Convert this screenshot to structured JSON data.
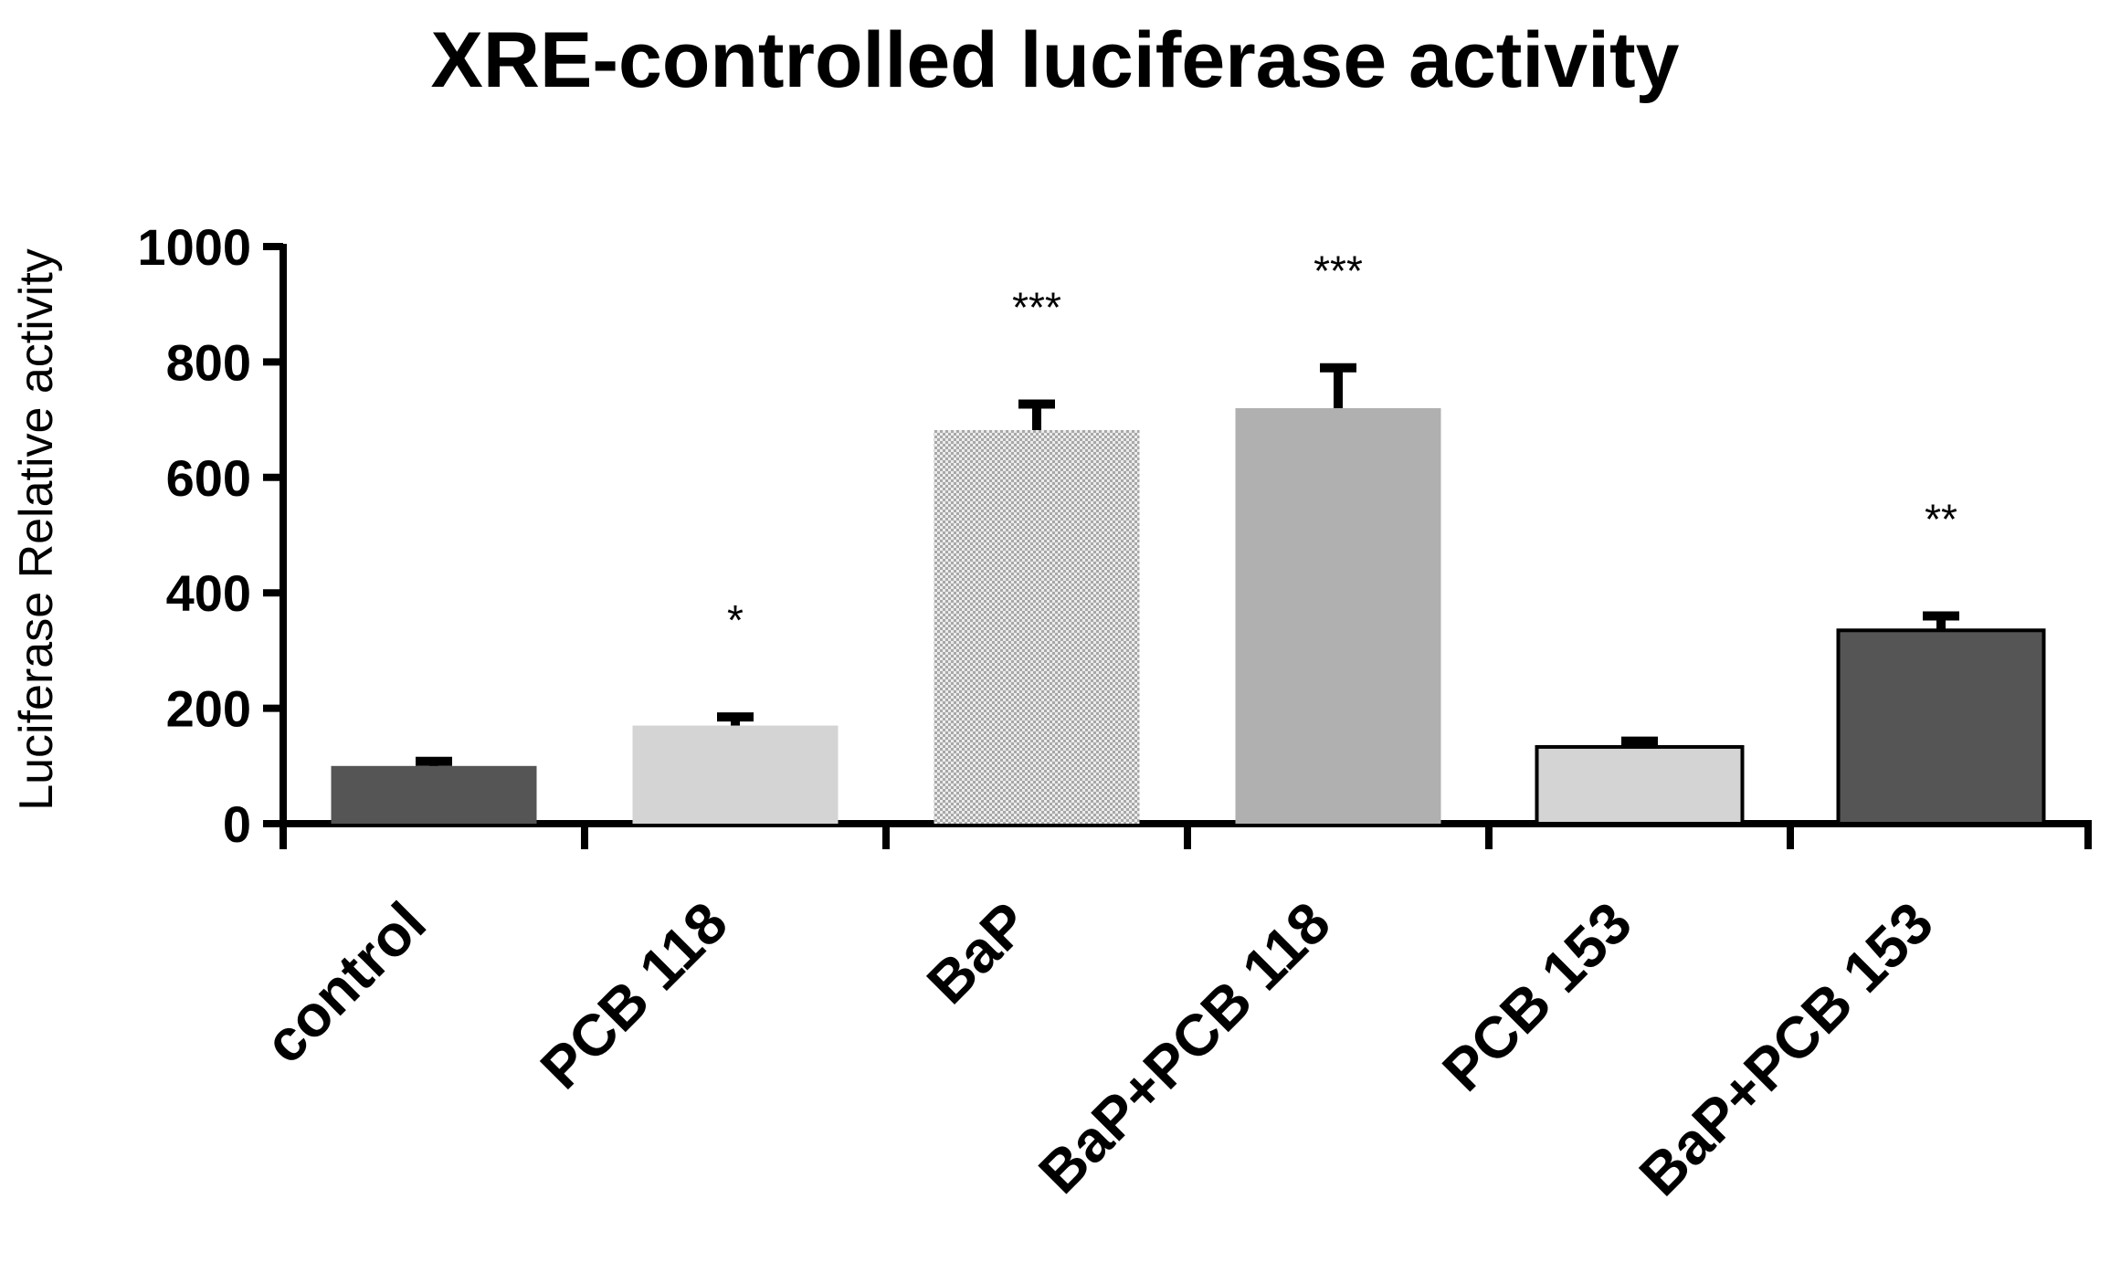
{
  "chart_data": {
    "type": "bar",
    "title": "XRE-controlled luciferase activity",
    "xlabel": "",
    "ylabel": "Luciferase Relative activity",
    "ylim": [
      0,
      1000
    ],
    "yticks": [
      0,
      200,
      400,
      600,
      800,
      1000
    ],
    "yticks_labels": [
      "0",
      "200",
      "400",
      "600",
      "800",
      "1000"
    ],
    "grid": false,
    "legend": "none",
    "categories": [
      "control",
      "PCB 118",
      "BaP",
      "BaP+PCB 118",
      "PCB 153",
      "BaP+PCB 153"
    ],
    "values": [
      100,
      170,
      682,
      720,
      133,
      335
    ],
    "error_bars": [
      8,
      15,
      45,
      70,
      10,
      25
    ],
    "annotations": [
      "",
      "*",
      "***",
      "***",
      "",
      "**"
    ],
    "bar_fills": [
      "#555555",
      "#d4d4d4",
      "checker",
      "#b0b0b0",
      "#d4d4d4",
      "#555555"
    ],
    "bar_outlined": [
      false,
      false,
      false,
      false,
      true,
      true
    ]
  }
}
